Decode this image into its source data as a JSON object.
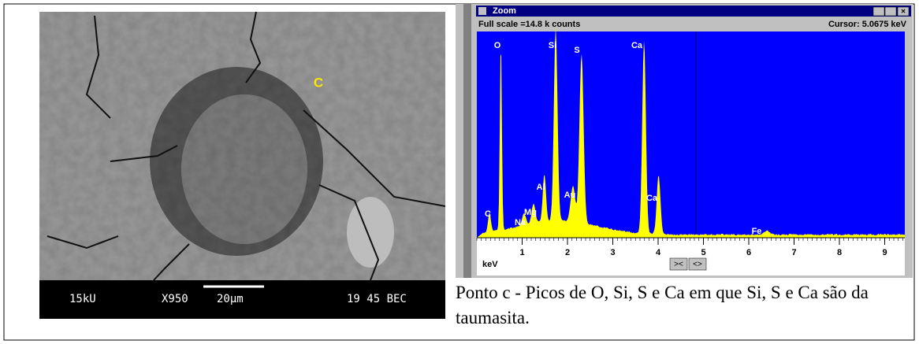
{
  "sem_image": {
    "label": "C",
    "info_bar": [
      "15kU",
      "X950",
      "20µm",
      "19 45 BEC"
    ]
  },
  "spectrum_window": {
    "title": "Zoom",
    "full_scale": "Full scale =14.8 k counts",
    "cursor": "Cursor: 5.0675 keV",
    "peak_labels": [
      "O",
      "Si",
      "S",
      "Ca",
      "C",
      "Mg",
      "Na",
      "Al",
      "Au",
      "Ca",
      "Fe"
    ],
    "axis_ticks": [
      1,
      2,
      3,
      4,
      5,
      6,
      7,
      8,
      9
    ],
    "axis_unit": "keV"
  },
  "caption": "Ponto c - Picos de O, Si, S e Ca em que Si, S e Ca são da taumasita."
}
